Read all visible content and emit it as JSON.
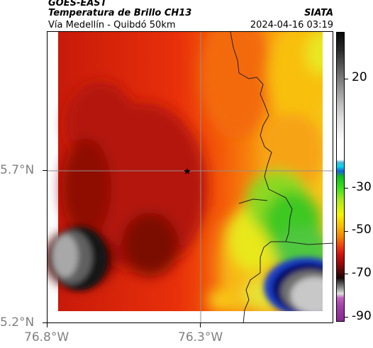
{
  "header": {
    "satellite": "GOES-EAST",
    "product": "Temperatura de Brillo CH13",
    "location": "Vía Medellín - Quibdó 50km",
    "organization": "SIATA",
    "datetime": "2024-04-16 03:19"
  },
  "axes": {
    "lat_ticks": [
      "5.7°N",
      "5.2°N"
    ],
    "lon_ticks": [
      "76.8°W",
      "76.3°W"
    ]
  },
  "colorbar": {
    "labels": [
      "20",
      "-30",
      "-50",
      "-70",
      "-90"
    ],
    "units": ""
  },
  "marker": {
    "icon": "star-icon"
  }
}
